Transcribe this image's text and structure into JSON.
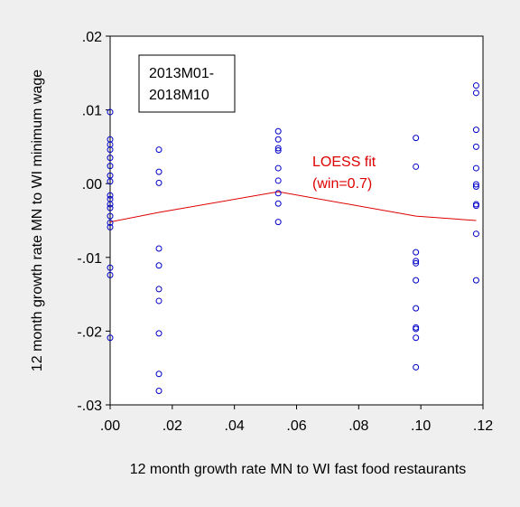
{
  "chart_data": {
    "type": "scatter",
    "xlabel": "12 month growth rate MN to WI fast food restaurants",
    "ylabel": "12 month growth rate MN to WI minimum wage",
    "xlim": [
      0.0,
      0.12
    ],
    "ylim": [
      -0.03,
      0.02
    ],
    "x_ticks": [
      0.0,
      0.02,
      0.04,
      0.06,
      0.08,
      0.1,
      0.12
    ],
    "x_tick_labels": [
      ".00",
      ".02",
      ".04",
      ".06",
      ".08",
      ".10",
      ".12"
    ],
    "y_ticks": [
      -0.03,
      -0.02,
      -0.01,
      0.0,
      0.01,
      0.02
    ],
    "y_tick_labels": [
      "-.03",
      "-.02",
      "-.01",
      ".00",
      ".01",
      ".02"
    ],
    "grid": false,
    "annotation": [
      "2013M01-",
      "2018M10"
    ],
    "series": [
      {
        "type": "scatter",
        "color": "#0000c8",
        "marker": "open-circle",
        "points": [
          [
            0.0,
            0.0097
          ],
          [
            0.0,
            0.006
          ],
          [
            0.0,
            0.0053
          ],
          [
            0.0,
            0.0046
          ],
          [
            0.0,
            0.0035
          ],
          [
            0.0,
            0.0024
          ],
          [
            0.0,
            0.0011
          ],
          [
            0.0,
            0.0003
          ],
          [
            0.0,
            -0.0016
          ],
          [
            0.0,
            -0.0021
          ],
          [
            0.0,
            -0.0028
          ],
          [
            0.0,
            -0.0033
          ],
          [
            0.0,
            -0.0044
          ],
          [
            0.0,
            -0.0053
          ],
          [
            0.0,
            -0.0059
          ],
          [
            0.0,
            -0.0114
          ],
          [
            0.0,
            -0.0124
          ],
          [
            0.0,
            -0.0209
          ],
          [
            0.0157,
            0.0046
          ],
          [
            0.0157,
            0.0016
          ],
          [
            0.0157,
            0.0001
          ],
          [
            0.0157,
            -0.0088
          ],
          [
            0.0157,
            -0.0111
          ],
          [
            0.0157,
            -0.0143
          ],
          [
            0.0157,
            -0.0159
          ],
          [
            0.0157,
            -0.0203
          ],
          [
            0.0157,
            -0.0258
          ],
          [
            0.0157,
            -0.0281
          ],
          [
            0.0541,
            0.0071
          ],
          [
            0.0541,
            0.006
          ],
          [
            0.0541,
            0.0048
          ],
          [
            0.0541,
            0.0045
          ],
          [
            0.0541,
            0.0021
          ],
          [
            0.0541,
            0.0004
          ],
          [
            0.0541,
            -0.0013
          ],
          [
            0.0541,
            -0.0027
          ],
          [
            0.0541,
            -0.0052
          ],
          [
            0.0984,
            0.0062
          ],
          [
            0.0984,
            0.0023
          ],
          [
            0.0984,
            -0.0093
          ],
          [
            0.0984,
            -0.0105
          ],
          [
            0.0984,
            -0.0108
          ],
          [
            0.0984,
            -0.0131
          ],
          [
            0.0984,
            -0.0169
          ],
          [
            0.0984,
            -0.0195
          ],
          [
            0.0984,
            -0.0197
          ],
          [
            0.0984,
            -0.0209
          ],
          [
            0.0984,
            -0.0249
          ],
          [
            0.1178,
            0.0133
          ],
          [
            0.1178,
            0.0123
          ],
          [
            0.1178,
            0.0073
          ],
          [
            0.1178,
            0.005
          ],
          [
            0.1178,
            0.0021
          ],
          [
            0.1178,
            -0.0001
          ],
          [
            0.1178,
            -0.0004
          ],
          [
            0.1178,
            -0.0028
          ],
          [
            0.1178,
            -0.003
          ],
          [
            0.1178,
            -0.0068
          ],
          [
            0.1178,
            -0.0131
          ]
        ]
      },
      {
        "type": "line",
        "name": "LOESS fit",
        "name_line2": "(win=0.7)",
        "color": "#dd0000",
        "points": [
          [
            0.0,
            -0.0052
          ],
          [
            0.0157,
            -0.0039
          ],
          [
            0.0541,
            -0.0011
          ],
          [
            0.0984,
            -0.0044
          ],
          [
            0.1178,
            -0.005
          ]
        ]
      }
    ]
  }
}
